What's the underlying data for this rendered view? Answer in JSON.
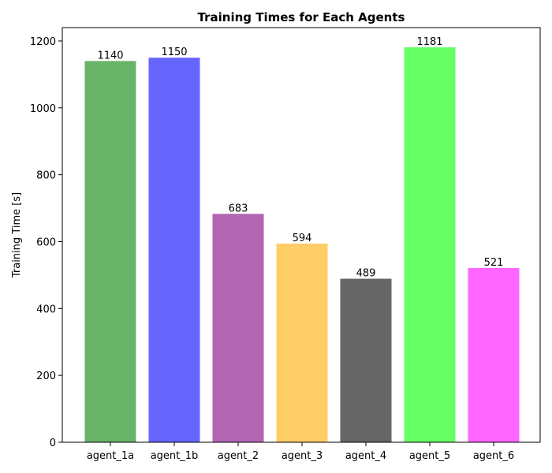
{
  "chart_data": {
    "type": "bar",
    "title": "Training Times for Each Agents",
    "xlabel": "",
    "ylabel": "Training Time [s]",
    "categories": [
      "agent_1a",
      "agent_1b",
      "agent_2",
      "agent_3",
      "agent_4",
      "agent_5",
      "agent_6"
    ],
    "values": [
      1140,
      1150,
      683,
      594,
      489,
      1181,
      521
    ],
    "value_labels": [
      "1140",
      "1150",
      "683",
      "594",
      "489",
      "1181",
      "521"
    ],
    "colors": [
      "#69b369",
      "#6666ff",
      "#b366b3",
      "#ffcc66",
      "#666666",
      "#66ff66",
      "#ff66ff"
    ],
    "ylim": [
      0,
      1240
    ],
    "yticks": [
      0,
      200,
      400,
      600,
      800,
      1000,
      1200
    ],
    "ytick_labels": [
      "0",
      "200",
      "400",
      "600",
      "800",
      "1000",
      "1200"
    ],
    "grid": false,
    "legend": false
  }
}
